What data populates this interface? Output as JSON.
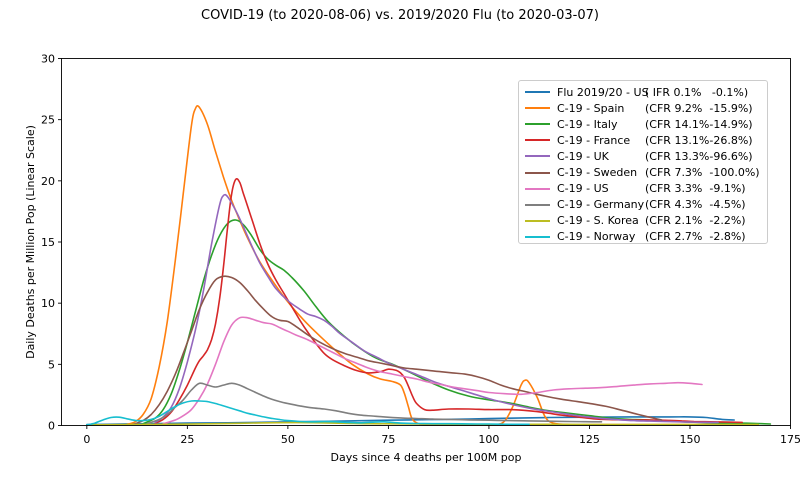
{
  "chart_data": {
    "type": "line",
    "title": "COVID-19 (to 2020-08-06) vs. 2019/2020 Flu (to 2020-03-07)",
    "xlabel": "Days since 4 deaths per 100M pop",
    "ylabel": "Daily Deaths per Million Pop (Linear Scale)",
    "xlim": [
      -6.3,
      175
    ],
    "ylim": [
      0,
      30
    ],
    "xticks": [
      0,
      25,
      50,
      75,
      100,
      125,
      150,
      175
    ],
    "yticks": [
      0,
      5,
      10,
      15,
      20,
      25,
      30
    ],
    "grid": false,
    "legend_position": "upper right",
    "series": [
      {
        "name": "Flu 2019/20 - US",
        "legend_stats": "( IFR 0.1%   -0.1%)",
        "color": "#1f77b4",
        "x": [
          0,
          5,
          15,
          25,
          35,
          45,
          55,
          65,
          75,
          85,
          95,
          105,
          115,
          125,
          135,
          145,
          150,
          154,
          158,
          161
        ],
        "y": [
          0.08,
          0.1,
          0.15,
          0.2,
          0.22,
          0.27,
          0.32,
          0.38,
          0.43,
          0.48,
          0.53,
          0.6,
          0.65,
          0.68,
          0.7,
          0.7,
          0.7,
          0.65,
          0.5,
          0.45
        ]
      },
      {
        "name": "C-19 - Spain",
        "legend_stats": "(CFR 9.2%  -15.9%)",
        "color": "#ff7f0e",
        "x": [
          10,
          12,
          14,
          16,
          18,
          20,
          22,
          24,
          26,
          27,
          28,
          30,
          32,
          34,
          36,
          38,
          40,
          43,
          46,
          50,
          54,
          58,
          62,
          66,
          70,
          73,
          76,
          78,
          79,
          80,
          81,
          83,
          86,
          92,
          98,
          102,
          104,
          106,
          108,
          109,
          110,
          112,
          114,
          116,
          120,
          130,
          140,
          150,
          158,
          162
        ],
        "y": [
          0.1,
          0.3,
          0.9,
          2.2,
          4.8,
          8.5,
          13.5,
          19,
          24.5,
          25.9,
          26.0,
          24.6,
          22.4,
          20.3,
          18.4,
          16.8,
          15.3,
          13.4,
          11.9,
          10.1,
          8.6,
          7.3,
          6.1,
          5.0,
          4.2,
          3.8,
          3.6,
          3.3,
          2.6,
          1.5,
          0.5,
          0.1,
          0.05,
          0.05,
          0.05,
          0.08,
          0.4,
          1.6,
          3.3,
          3.7,
          3.5,
          2.3,
          0.7,
          0.2,
          0.08,
          0.08,
          0.08,
          0.08,
          0.08,
          0.08
        ]
      },
      {
        "name": "C-19 - Italy",
        "legend_stats": "(CFR 14.1%-14.9%)",
        "color": "#2ca02c",
        "x": [
          14,
          17,
          19,
          21,
          23,
          25,
          27,
          29,
          31,
          33,
          35,
          37,
          39,
          41,
          43,
          45,
          47,
          49,
          51,
          54,
          57,
          60,
          64,
          68,
          72,
          76,
          80,
          85,
          90,
          95,
          100,
          105,
          110,
          115,
          120,
          125,
          130,
          135,
          140,
          145,
          150,
          155,
          160,
          165,
          170
        ],
        "y": [
          0.15,
          0.6,
          1.3,
          2.6,
          4.5,
          6.8,
          9.3,
          11.8,
          13.9,
          15.5,
          16.5,
          16.8,
          16.4,
          15.5,
          14.4,
          13.6,
          13.1,
          12.7,
          12.1,
          11.0,
          9.7,
          8.5,
          7.3,
          6.3,
          5.5,
          5.0,
          4.4,
          3.6,
          2.9,
          2.4,
          2.1,
          1.85,
          1.5,
          1.2,
          1.0,
          0.8,
          0.6,
          0.5,
          0.45,
          0.35,
          0.28,
          0.22,
          0.2,
          0.18,
          0.12
        ]
      },
      {
        "name": "C-19 - France",
        "legend_stats": "(CFR 13.1%-26.8%)",
        "color": "#d62728",
        "x": [
          17,
          19,
          21,
          23,
          25,
          27,
          28,
          29,
          30,
          31,
          32,
          33,
          34,
          35,
          36,
          37,
          38,
          39,
          41,
          43,
          45,
          47,
          49,
          51,
          53,
          55,
          57,
          59,
          61,
          64,
          67,
          70,
          73,
          75,
          77,
          78,
          79,
          80,
          81,
          82,
          84,
          86,
          90,
          95,
          100,
          105,
          110,
          114,
          118,
          122,
          126,
          130,
          135,
          140,
          145,
          148,
          151,
          155,
          159,
          163
        ],
        "y": [
          0.2,
          0.5,
          1.1,
          2.1,
          3.3,
          4.7,
          5.3,
          5.7,
          6.2,
          7.0,
          8.3,
          10.3,
          13.0,
          16.2,
          18.9,
          20.1,
          19.9,
          18.9,
          16.9,
          14.9,
          13.2,
          11.9,
          10.8,
          9.7,
          8.6,
          7.6,
          6.7,
          5.9,
          5.4,
          4.9,
          4.5,
          4.3,
          4.4,
          4.6,
          4.5,
          4.3,
          3.9,
          3.2,
          2.4,
          1.8,
          1.3,
          1.25,
          1.35,
          1.35,
          1.3,
          1.3,
          1.2,
          1.05,
          0.85,
          0.7,
          0.55,
          0.48,
          0.45,
          0.45,
          0.42,
          0.38,
          0.32,
          0.3,
          0.28,
          0.25
        ]
      },
      {
        "name": "C-19 - UK",
        "legend_stats": "(CFR 13.3%-96.6%)",
        "color": "#9467bd",
        "x": [
          17,
          19,
          21,
          23,
          25,
          27,
          29,
          31,
          33,
          34,
          35,
          37,
          39,
          41,
          43,
          45,
          47,
          50,
          53,
          55,
          57,
          59,
          61,
          63,
          66,
          69,
          72,
          75,
          78,
          81,
          84,
          87,
          90,
          93,
          96,
          100,
          104,
          108,
          112,
          116,
          120,
          124,
          128,
          132,
          136,
          140,
          145,
          150,
          154,
          157
        ],
        "y": [
          0.25,
          0.7,
          1.5,
          3.0,
          5.2,
          7.8,
          11.0,
          14.8,
          18.0,
          18.8,
          18.7,
          17.6,
          16.2,
          14.7,
          13.3,
          12.2,
          11.2,
          10.2,
          9.5,
          9.1,
          8.9,
          8.6,
          8.1,
          7.5,
          6.8,
          6.1,
          5.6,
          5.1,
          4.7,
          4.3,
          3.9,
          3.5,
          3.2,
          2.9,
          2.6,
          2.2,
          1.85,
          1.55,
          1.3,
          1.1,
          0.9,
          0.72,
          0.58,
          0.48,
          0.4,
          0.36,
          0.32,
          0.28,
          0.26,
          0.25
        ]
      },
      {
        "name": "C-19 - Sweden",
        "legend_stats": "(CFR 7.3%  -100.0%)",
        "color": "#8c564b",
        "x": [
          12,
          14,
          16,
          18,
          20,
          22,
          24,
          26,
          28,
          30,
          32,
          34,
          36,
          38,
          40,
          42,
          44,
          46,
          48,
          50,
          52,
          55,
          58,
          61,
          64,
          67,
          70,
          73,
          76,
          79,
          82,
          85,
          88,
          91,
          94,
          97,
          100,
          103,
          106,
          110,
          114,
          118,
          122,
          126,
          130,
          133,
          136,
          139,
          141,
          143
        ],
        "y": [
          0.15,
          0.4,
          0.9,
          1.7,
          2.8,
          4.2,
          5.9,
          7.7,
          9.5,
          10.9,
          11.9,
          12.2,
          12.1,
          11.7,
          11.0,
          10.2,
          9.5,
          8.9,
          8.6,
          8.5,
          8.1,
          7.4,
          6.8,
          6.3,
          5.9,
          5.6,
          5.3,
          5.1,
          4.9,
          4.7,
          4.6,
          4.5,
          4.4,
          4.3,
          4.2,
          4.0,
          3.7,
          3.3,
          3.0,
          2.7,
          2.4,
          2.15,
          1.95,
          1.75,
          1.5,
          1.25,
          1.0,
          0.75,
          0.6,
          0.45
        ]
      },
      {
        "name": "C-19 - US",
        "legend_stats": "(CFR 3.3%  -9.1%)",
        "color": "#e377c2",
        "x": [
          19,
          22,
          24,
          26,
          28,
          30,
          32,
          34,
          36,
          38,
          40,
          42,
          44,
          46,
          48,
          50,
          52,
          55,
          58,
          61,
          64,
          67,
          70,
          73,
          76,
          79,
          82,
          85,
          88,
          91,
          94,
          97,
          100,
          104,
          108,
          112,
          116,
          120,
          124,
          128,
          132,
          136,
          140,
          144,
          147,
          150,
          153
        ],
        "y": [
          0.15,
          0.45,
          0.8,
          1.3,
          2.2,
          3.4,
          5.0,
          6.8,
          8.2,
          8.8,
          8.8,
          8.6,
          8.4,
          8.3,
          8.0,
          7.7,
          7.4,
          7.0,
          6.5,
          6.0,
          5.5,
          5.1,
          4.7,
          4.4,
          4.2,
          4.0,
          3.8,
          3.55,
          3.35,
          3.15,
          3.0,
          2.85,
          2.7,
          2.6,
          2.55,
          2.7,
          2.9,
          3.0,
          3.05,
          3.1,
          3.2,
          3.3,
          3.4,
          3.45,
          3.5,
          3.45,
          3.35
        ]
      },
      {
        "name": "C-19 - Germany",
        "legend_stats": "(CFR 4.3%  -4.5%)",
        "color": "#7f7f7f",
        "x": [
          15,
          18,
          20,
          22,
          24,
          26,
          28,
          30,
          32,
          34,
          36,
          38,
          40,
          42,
          44,
          46,
          48,
          50,
          53,
          56,
          59,
          62,
          65,
          68,
          71,
          74,
          78,
          82,
          86,
          90,
          95,
          100,
          105,
          110,
          115,
          120,
          124,
          128
        ],
        "y": [
          0.15,
          0.5,
          0.9,
          1.5,
          2.1,
          2.9,
          3.45,
          3.3,
          3.15,
          3.3,
          3.45,
          3.3,
          3.0,
          2.7,
          2.4,
          2.15,
          1.95,
          1.8,
          1.6,
          1.45,
          1.35,
          1.2,
          1.0,
          0.85,
          0.78,
          0.7,
          0.62,
          0.57,
          0.52,
          0.5,
          0.46,
          0.43,
          0.4,
          0.38,
          0.35,
          0.33,
          0.31,
          0.3
        ]
      },
      {
        "name": "C-19 - S. Korea",
        "legend_stats": "(CFR 2.1%  -2.2%)",
        "color": "#bcbd22",
        "x": [
          0,
          10,
          20,
          30,
          38,
          45,
          52,
          58,
          64,
          70,
          80,
          90,
          100,
          110,
          120,
          130,
          140,
          150,
          160,
          167
        ],
        "y": [
          0.05,
          0.08,
          0.1,
          0.14,
          0.18,
          0.22,
          0.24,
          0.22,
          0.18,
          0.15,
          0.13,
          0.11,
          0.1,
          0.1,
          0.09,
          0.08,
          0.08,
          0.07,
          0.07,
          0.07
        ]
      },
      {
        "name": "C-19 - Norway",
        "legend_stats": "(CFR 2.7%  -2.8%)",
        "color": "#17becf",
        "x": [
          0,
          2,
          4,
          6,
          8,
          10,
          12,
          14,
          16,
          18,
          20,
          22,
          24,
          26,
          28,
          30,
          32,
          34,
          36,
          38,
          40,
          42,
          44,
          46,
          48,
          50,
          53,
          56,
          59,
          62,
          65,
          68,
          71,
          74,
          78,
          82,
          86,
          90,
          95,
          100,
          105,
          110
        ],
        "y": [
          0.05,
          0.2,
          0.45,
          0.65,
          0.68,
          0.55,
          0.42,
          0.4,
          0.5,
          0.75,
          1.15,
          1.55,
          1.85,
          2.0,
          2.0,
          1.95,
          1.8,
          1.6,
          1.4,
          1.2,
          1.0,
          0.85,
          0.7,
          0.58,
          0.48,
          0.4,
          0.33,
          0.3,
          0.32,
          0.3,
          0.25,
          0.22,
          0.27,
          0.3,
          0.2,
          0.16,
          0.15,
          0.15,
          0.13,
          0.12,
          0.1,
          0.1
        ]
      }
    ]
  }
}
